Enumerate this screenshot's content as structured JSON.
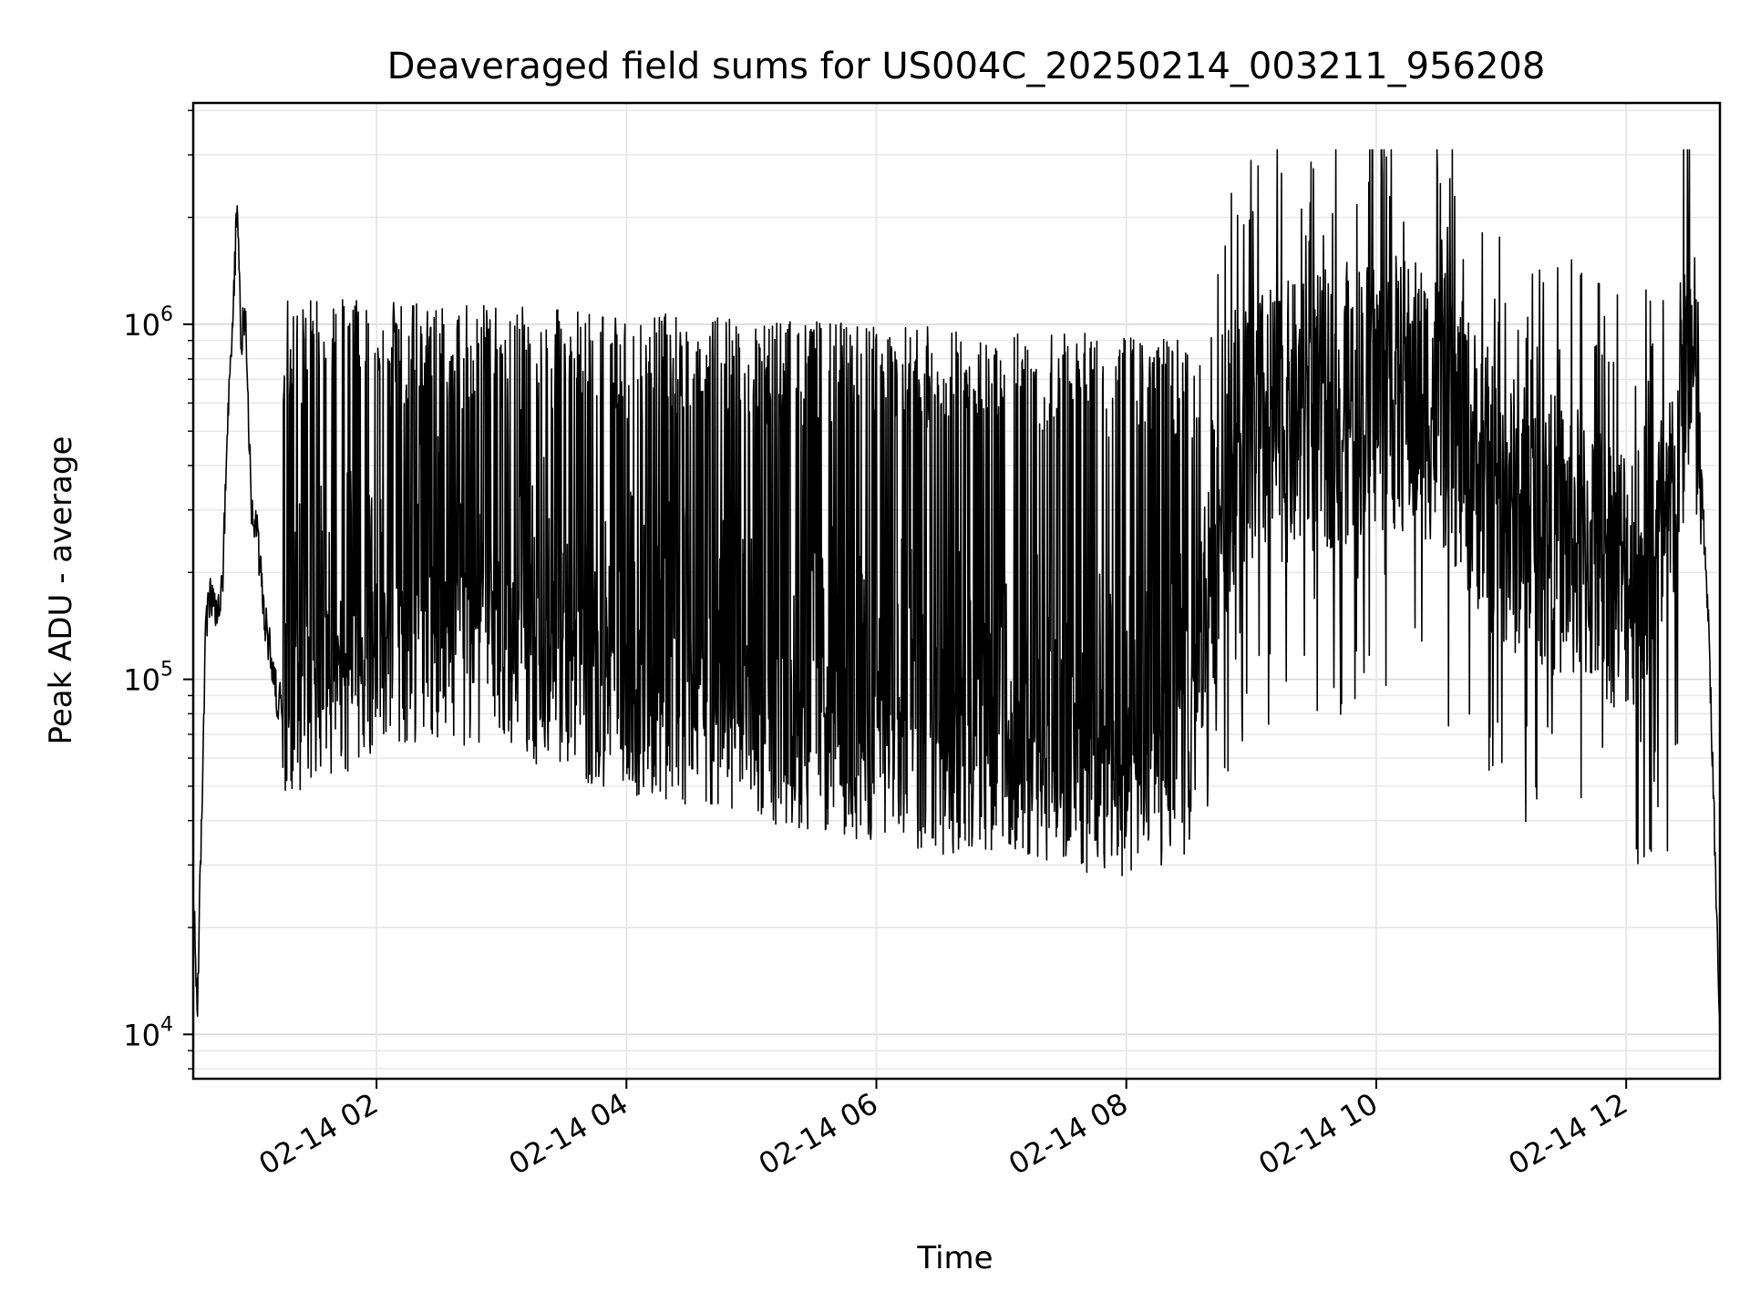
{
  "chart_data": {
    "type": "line",
    "title": "Deaveraged field sums for US004C_20250214_003211_956208",
    "xlabel": "Time",
    "ylabel": "Peak ADU - average",
    "y_scale": "log",
    "ylim": [
      7500,
      4200000
    ],
    "xlim": [
      "2025-02-14T00:32:00",
      "2025-02-14T12:45:00"
    ],
    "grid": true,
    "line_color": "#000000",
    "x_ticks": [
      {
        "value": "2025-02-14T02:00:00",
        "label": "02-14 02"
      },
      {
        "value": "2025-02-14T04:00:00",
        "label": "02-14 04"
      },
      {
        "value": "2025-02-14T06:00:00",
        "label": "02-14 06"
      },
      {
        "value": "2025-02-14T08:00:00",
        "label": "02-14 08"
      },
      {
        "value": "2025-02-14T10:00:00",
        "label": "02-14 10"
      },
      {
        "value": "2025-02-14T12:00:00",
        "label": "02-14 12"
      }
    ],
    "y_ticks": [
      {
        "value": 10000,
        "base": "10",
        "exp": "4"
      },
      {
        "value": 100000,
        "base": "10",
        "exp": "5"
      },
      {
        "value": 1000000,
        "base": "10",
        "exp": "6"
      }
    ],
    "series": [
      {
        "x": [
          "2025-02-14T00:32:00",
          "2025-02-14T00:34:00",
          "2025-02-14T00:36:00",
          "2025-02-14T00:38:00",
          "2025-02-14T00:40:00",
          "2025-02-14T00:43:00",
          "2025-02-14T00:46:00",
          "2025-02-14T00:49:00",
          "2025-02-14T00:51:00",
          "2025-02-14T00:53:00",
          "2025-02-14T00:55:00",
          "2025-02-14T00:57:00",
          "2025-02-14T01:00:00",
          "2025-02-14T01:03:00",
          "2025-02-14T01:06:00",
          "2025-02-14T01:09:00",
          "2025-02-14T01:12:00",
          "2025-02-14T01:15:00",
          "2025-02-14T01:20:00",
          "2025-02-14T01:30:00",
          "2025-02-14T01:45:00",
          "2025-02-14T02:00:00",
          "2025-02-14T02:30:00",
          "2025-02-14T03:00:00",
          "2025-02-14T03:30:00",
          "2025-02-14T04:00:00",
          "2025-02-14T04:30:00",
          "2025-02-14T05:00:00",
          "2025-02-14T05:30:00",
          "2025-02-14T06:00:00",
          "2025-02-14T06:30:00",
          "2025-02-14T07:00:00",
          "2025-02-14T07:30:00",
          "2025-02-14T08:00:00",
          "2025-02-14T08:30:00",
          "2025-02-14T08:40:00",
          "2025-02-14T08:50:00",
          "2025-02-14T09:00:00",
          "2025-02-14T09:30:00",
          "2025-02-14T10:00:00",
          "2025-02-14T10:30:00",
          "2025-02-14T11:00:00",
          "2025-02-14T11:30:00",
          "2025-02-14T12:00:00",
          "2025-02-14T12:20:00",
          "2025-02-14T12:30:00",
          "2025-02-14T12:35:00",
          "2025-02-14T12:40:00",
          "2025-02-14T12:45:00"
        ],
        "y": [
          25000,
          12000,
          40000,
          140000,
          170000,
          150000,
          180000,
          600000,
          1000000,
          2200000,
          900000,
          1100000,
          300000,
          250000,
          150000,
          120000,
          90000,
          85000,
          90000,
          95000,
          100000,
          120000,
          125000,
          120000,
          100000,
          85000,
          80000,
          75000,
          70000,
          65000,
          60000,
          62000,
          55000,
          50000,
          60000,
          200000,
          450000,
          500000,
          550000,
          650000,
          600000,
          300000,
          250000,
          200000,
          250000,
          900000,
          500000,
          120000,
          10000
        ]
      }
    ]
  }
}
